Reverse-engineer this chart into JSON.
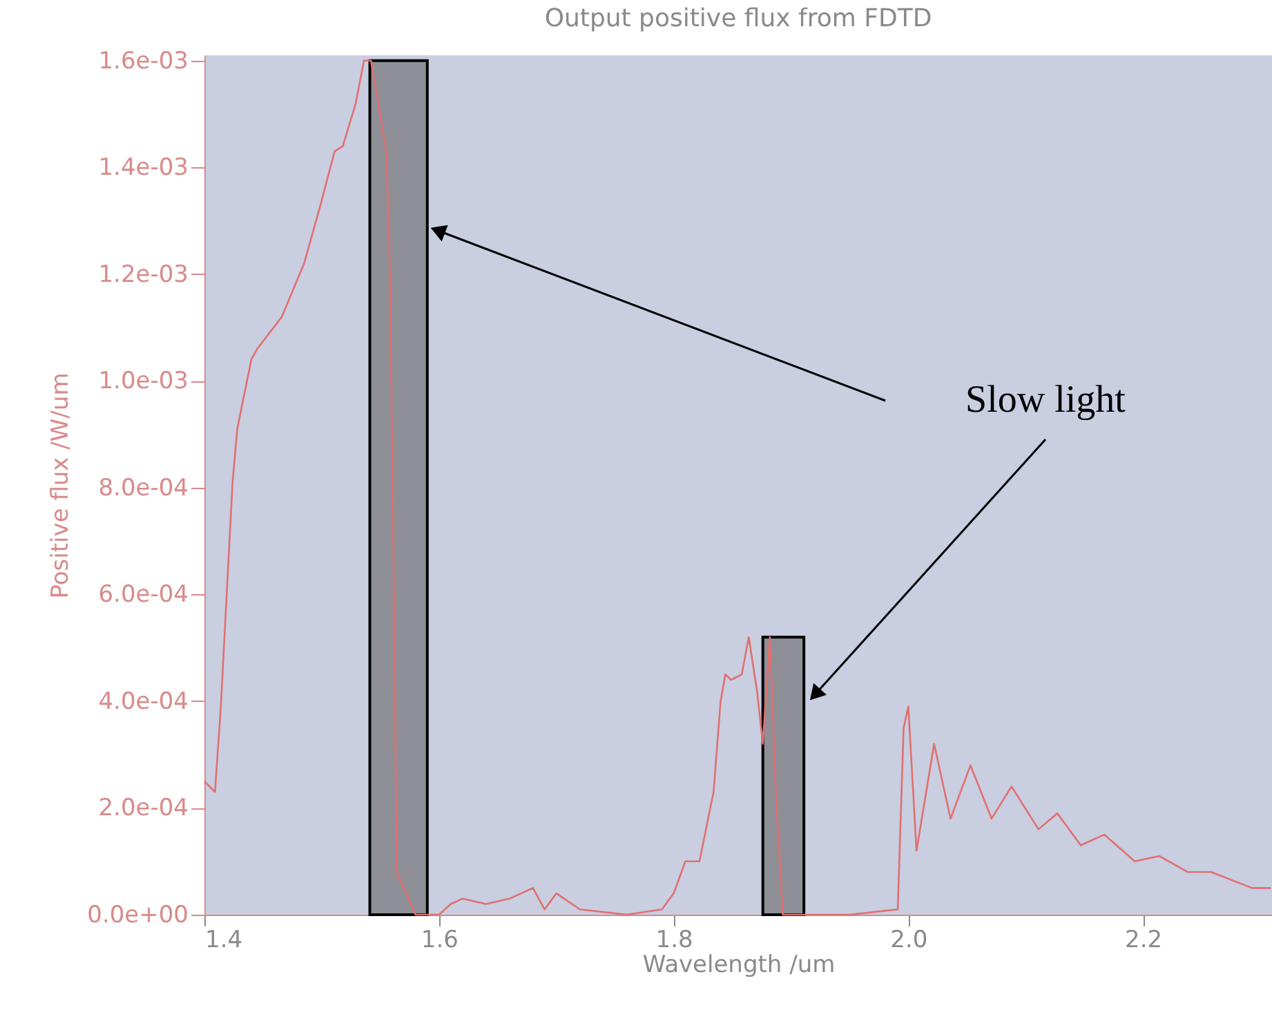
{
  "chart_data": {
    "type": "line",
    "title": "Output positive flux from FDTD",
    "xlabel": "Wavelength /um",
    "ylabel": "Positive flux /W/um",
    "xlim": [
      1.4,
      2.31
    ],
    "ylim": [
      0,
      0.00161
    ],
    "xticks": [
      1.4,
      1.6,
      1.8,
      {
        "value": 2.0,
        "label": "2.0"
      },
      2.2
    ],
    "yticks": [
      {
        "value": 0,
        "label": "0.0e+00"
      },
      {
        "value": 0.0002,
        "label": "2.0e-04"
      },
      {
        "value": 0.0004,
        "label": "4.0e-04"
      },
      {
        "value": 0.0006,
        "label": "6.0e-04"
      },
      {
        "value": 0.0008,
        "label": "8.0e-04"
      },
      {
        "value": 0.001,
        "label": "1.0e-03"
      },
      {
        "value": 0.0012,
        "label": "1.2e-03"
      },
      {
        "value": 0.0014,
        "label": "1.4e-03"
      },
      {
        "value": 0.0016,
        "label": "1.6e-03"
      }
    ],
    "grid": false,
    "marker": "none",
    "line_style": "solid",
    "series": [
      {
        "color": "#e07070",
        "x": [
          1.4,
          1.409,
          1.414,
          1.419,
          1.424,
          1.428,
          1.44,
          1.445,
          1.466,
          1.485,
          1.499,
          1.511,
          1.518,
          1.529,
          1.536,
          1.542,
          1.555,
          1.558,
          1.561,
          1.564,
          1.58,
          1.6,
          1.61,
          1.62,
          1.64,
          1.66,
          1.68,
          1.69,
          1.7,
          1.72,
          1.76,
          1.79,
          1.8,
          1.81,
          1.822,
          1.834,
          1.84,
          1.844,
          1.849,
          1.858,
          1.864,
          1.871,
          1.876,
          1.882,
          1.887,
          1.893,
          1.95,
          1.991,
          1.996,
          2.0,
          2.007,
          2.022,
          2.036,
          2.053,
          2.071,
          2.088,
          2.111,
          2.127,
          2.147,
          2.167,
          2.193,
          2.214,
          2.238,
          2.258,
          2.293,
          2.309
        ],
        "values": [
          0.00025,
          0.00023,
          0.00039,
          0.0006,
          0.00081,
          0.00091,
          0.00104,
          0.00106,
          0.00112,
          0.00122,
          0.00133,
          0.00143,
          0.00144,
          0.00152,
          0.0016,
          0.0016,
          0.00143,
          0.00122,
          0.0007,
          8e-05,
          0.0,
          0.0,
          2e-05,
          3e-05,
          2e-05,
          3e-05,
          5e-05,
          1e-05,
          4e-05,
          1e-05,
          0.0,
          1e-05,
          4e-05,
          0.0001,
          0.0001,
          0.00023,
          0.0004,
          0.00045,
          0.00044,
          0.00045,
          0.00052,
          0.00042,
          0.00032,
          0.00052,
          0.00023,
          0.0,
          0.0,
          1e-05,
          0.00035,
          0.00039,
          0.00012,
          0.00032,
          0.00018,
          0.00028,
          0.00018,
          0.00024,
          0.00016,
          0.00019,
          0.00013,
          0.00015,
          0.0001,
          0.00011,
          8e-05,
          8e-05,
          5e-05,
          5e-05
        ]
      }
    ],
    "bands": [
      {
        "axis": "x",
        "from": 1.541,
        "to": 1.59,
        "color": "#8f8f98"
      },
      {
        "axis": "x",
        "from": 1.876,
        "to": 1.911,
        "color": "#8f8f98"
      }
    ],
    "annotations": [
      "Slow light"
    ]
  }
}
